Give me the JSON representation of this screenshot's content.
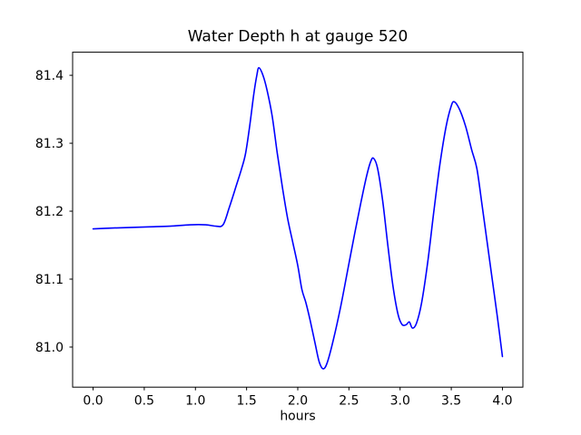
{
  "figure": {
    "background": "#ffffff"
  },
  "chart_data": {
    "type": "line",
    "title": "Water Depth h at gauge 520",
    "xlabel": "hours",
    "ylabel": "",
    "grid": false,
    "legend": false,
    "line_color": "#0000ff",
    "axis_color": "#000000",
    "xlim": [
      -0.2,
      4.2
    ],
    "ylim": [
      80.941,
      81.434
    ],
    "xticks": {
      "values": [
        0.0,
        0.5,
        1.0,
        1.5,
        2.0,
        2.5,
        3.0,
        3.5,
        4.0
      ],
      "labels": [
        "0.0",
        "0.5",
        "1.0",
        "1.5",
        "2.0",
        "2.5",
        "3.0",
        "3.5",
        "4.0"
      ]
    },
    "yticks": {
      "values": [
        81.0,
        81.1,
        81.2,
        81.3,
        81.4
      ],
      "labels": [
        "81.0",
        "81.1",
        "81.2",
        "81.3",
        "81.4"
      ]
    },
    "x": [
      0.0,
      0.15,
      0.35,
      0.55,
      0.75,
      0.95,
      1.1,
      1.2,
      1.27,
      1.33,
      1.4,
      1.45,
      1.49,
      1.53,
      1.57,
      1.6,
      1.62,
      1.66,
      1.7,
      1.75,
      1.8,
      1.85,
      1.9,
      1.95,
      2.0,
      2.04,
      2.08,
      2.12,
      2.17,
      2.21,
      2.25,
      2.29,
      2.35,
      2.42,
      2.49,
      2.56,
      2.62,
      2.67,
      2.71,
      2.74,
      2.78,
      2.83,
      2.88,
      2.93,
      2.98,
      3.02,
      3.06,
      3.09,
      3.12,
      3.16,
      3.21,
      3.27,
      3.33,
      3.39,
      3.45,
      3.5,
      3.53,
      3.58,
      3.64,
      3.7,
      3.75,
      3.8,
      3.85,
      3.9,
      3.95,
      4.0
    ],
    "y": [
      81.174,
      81.175,
      81.176,
      81.177,
      81.178,
      81.18,
      81.18,
      81.178,
      81.18,
      81.205,
      81.238,
      81.262,
      81.285,
      81.325,
      81.372,
      81.4,
      81.411,
      81.4,
      81.378,
      81.34,
      81.285,
      81.235,
      81.19,
      81.155,
      81.12,
      81.085,
      81.065,
      81.04,
      81.005,
      80.978,
      80.968,
      80.978,
      81.012,
      81.06,
      81.115,
      81.17,
      81.215,
      81.25,
      81.272,
      81.278,
      81.263,
      81.215,
      81.15,
      81.09,
      81.048,
      81.033,
      81.033,
      81.037,
      81.028,
      81.035,
      81.065,
      81.125,
      81.2,
      81.27,
      81.325,
      81.355,
      81.361,
      81.35,
      81.325,
      81.29,
      81.263,
      81.21,
      81.155,
      81.1,
      81.045,
      80.986
    ]
  }
}
